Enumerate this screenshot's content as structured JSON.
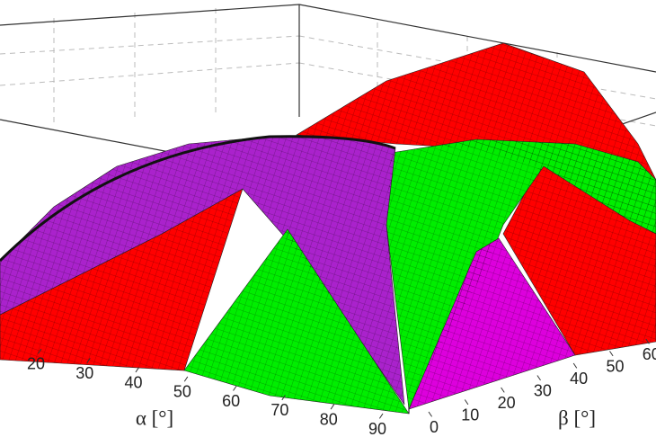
{
  "chart_data": {
    "type": "surface",
    "xlabel": "α [°]",
    "ylabel": "β [°]",
    "xlim": [
      0,
      90
    ],
    "xticks": [
      20,
      30,
      40,
      50,
      60,
      70,
      80,
      90
    ],
    "ylim": [
      0,
      90
    ],
    "yticks": [
      0,
      10,
      20,
      30,
      40,
      50,
      60
    ]
  }
}
